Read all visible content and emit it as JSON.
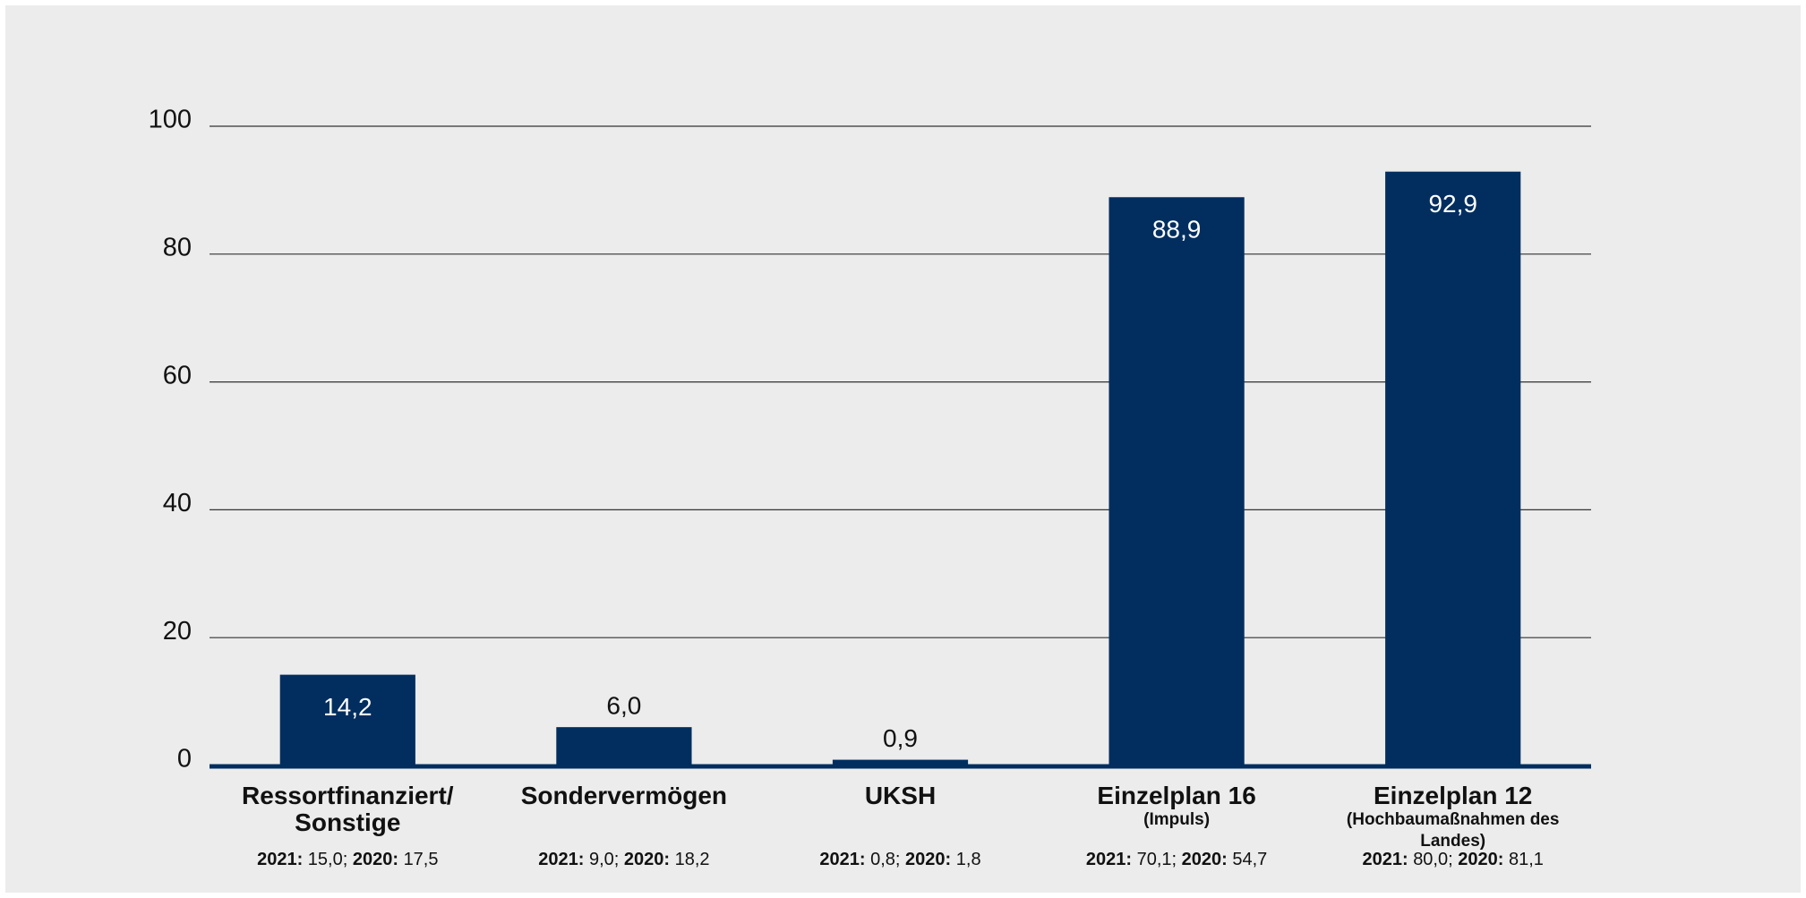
{
  "chart_data": {
    "type": "bar",
    "categories": [
      "Ressortfinanziert/ Sonstige",
      "Sondervermögen",
      "UKSH",
      "Einzelplan 16",
      "Einzelplan 12"
    ],
    "sublabels": [
      null,
      null,
      null,
      "(Impuls)",
      "(Hochbaumaßnahmen des Landes)"
    ],
    "details": [
      [
        {
          "label": "2021:",
          "value": "15,0;"
        },
        {
          "label": "2020:",
          "value": "17,5"
        }
      ],
      [
        {
          "label": "2021:",
          "value": "9,0;"
        },
        {
          "label": "2020:",
          "value": "18,2"
        }
      ],
      [
        {
          "label": "2021:",
          "value": "0,8;"
        },
        {
          "label": "2020:",
          "value": "1,8"
        }
      ],
      [
        {
          "label": "2021:",
          "value": "70,1;"
        },
        {
          "label": "2020:",
          "value": "54,7"
        }
      ],
      [
        {
          "label": "2021:",
          "value": "80,0;"
        },
        {
          "label": "2020:",
          "value": "81,1"
        }
      ]
    ],
    "values": [
      14.2,
      6.0,
      0.9,
      88.9,
      92.9
    ],
    "value_labels": [
      "14,2",
      "6,0",
      "0,9",
      "88,9",
      "92,9"
    ],
    "color": "#012e5f",
    "ylim": [
      0,
      100
    ],
    "yticks": [
      0,
      20,
      40,
      60,
      80,
      100
    ],
    "grid": true
  }
}
